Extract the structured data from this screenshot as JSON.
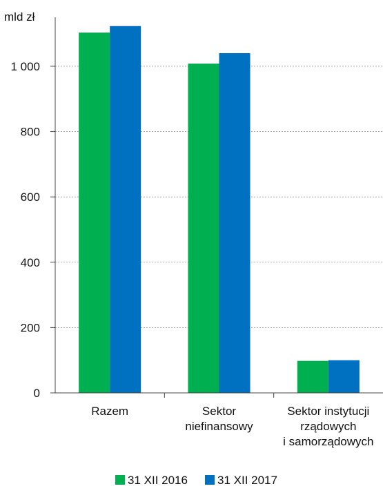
{
  "chart_data": {
    "type": "bar",
    "ylabel": "mld zł",
    "categories": [
      [
        "Razem"
      ],
      [
        "Sektor",
        "niefinansowy"
      ],
      [
        "Sektor instytucji",
        "rządowych",
        "i samorządowych"
      ]
    ],
    "series": [
      {
        "name": "31 XII 2016",
        "color": "#00b050",
        "values": [
          1103,
          1008,
          98
        ]
      },
      {
        "name": "31 XII 2017",
        "color": "#0070c0",
        "values": [
          1123,
          1040,
          100
        ]
      }
    ],
    "ylim": [
      0,
      1150
    ],
    "yticks": [
      0,
      200,
      400,
      600,
      800,
      1000
    ],
    "ytick_labels": [
      "0",
      "200",
      "400",
      "600",
      "800",
      "1 000"
    ],
    "grid": true,
    "legend_position": "bottom"
  }
}
